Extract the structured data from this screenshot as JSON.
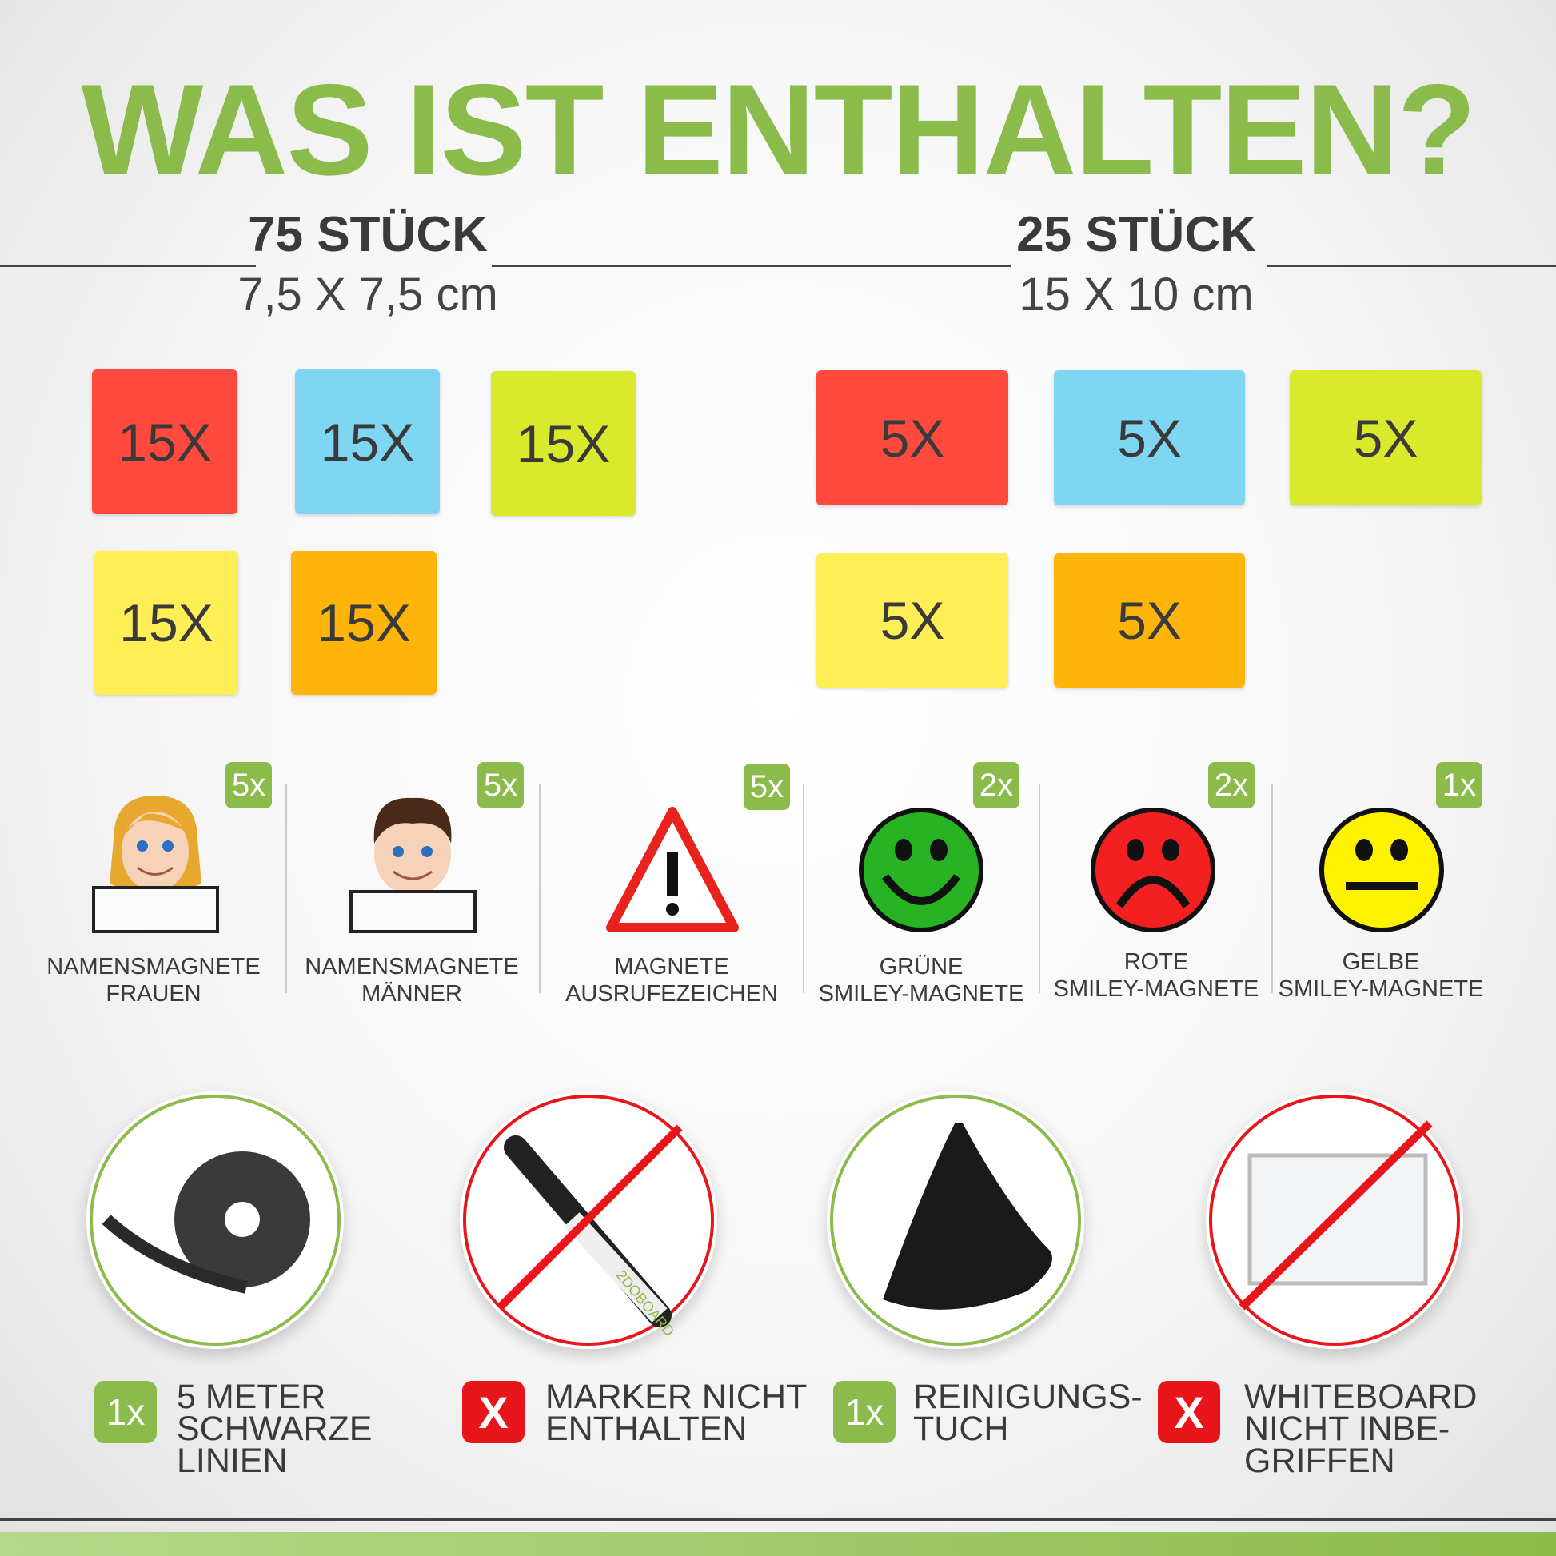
{
  "title": "WAS IST ENTHALTEN?",
  "left_group": {
    "count": "75 STÜCK",
    "size": "7,5 X 7,5 cm",
    "tiles": [
      {
        "label": "15X",
        "color": "#ff4a3d"
      },
      {
        "label": "15X",
        "color": "#7fd6f2"
      },
      {
        "label": "15X",
        "color": "#d9ea2c"
      },
      {
        "label": "15X",
        "color": "#ffee55"
      },
      {
        "label": "15X",
        "color": "#ffb40a"
      }
    ]
  },
  "right_group": {
    "count": "25 STÜCK",
    "size": "15 X 10 cm",
    "tiles": [
      {
        "label": "5X",
        "color": "#ff4a3d"
      },
      {
        "label": "5X",
        "color": "#7fd6f2"
      },
      {
        "label": "5X",
        "color": "#d9ea2c"
      },
      {
        "label": "5X",
        "color": "#ffee55"
      },
      {
        "label": "5X",
        "color": "#ffb40a"
      }
    ]
  },
  "magnets": [
    {
      "qty": "5x",
      "line1": "NAMENSMAGNETE",
      "line2": "FRAUEN",
      "icon": "girl-name-magnet-icon"
    },
    {
      "qty": "5x",
      "line1": "NAMENSMAGNETE",
      "line2": "MÄNNER",
      "icon": "boy-name-magnet-icon"
    },
    {
      "qty": "5x",
      "line1": "MAGNETE",
      "line2": "AUSRUFEZEICHEN",
      "icon": "warning-icon"
    },
    {
      "qty": "2x",
      "line1": "GRÜNE",
      "line2": "SMILEY-MAGNETE",
      "icon": "happy-smiley-icon"
    },
    {
      "qty": "2x",
      "line1": "ROTE",
      "line2": "SMILEY-MAGNETE",
      "icon": "sad-smiley-icon"
    },
    {
      "qty": "1x",
      "line1": "GELBE",
      "line2": "SMILEY-MAGNETE",
      "icon": "neutral-smiley-icon"
    }
  ],
  "extras": [
    {
      "badge": "1x",
      "included": true,
      "lines": [
        "5 METER",
        "SCHWARZE",
        "LINIEN"
      ]
    },
    {
      "badge": "X",
      "included": false,
      "lines": [
        "MARKER NICHT",
        "ENTHALTEN"
      ],
      "marker_brand": "2DOBOARD"
    },
    {
      "badge": "1x",
      "included": true,
      "lines": [
        "REINIGUNGS-",
        "TUCH"
      ]
    },
    {
      "badge": "X",
      "included": false,
      "lines": [
        "WHITEBOARD",
        "NICHT INBE-",
        "GRIFFEN"
      ]
    }
  ],
  "colors": {
    "accent": "#8bbb4a",
    "no": "#e8161b"
  }
}
